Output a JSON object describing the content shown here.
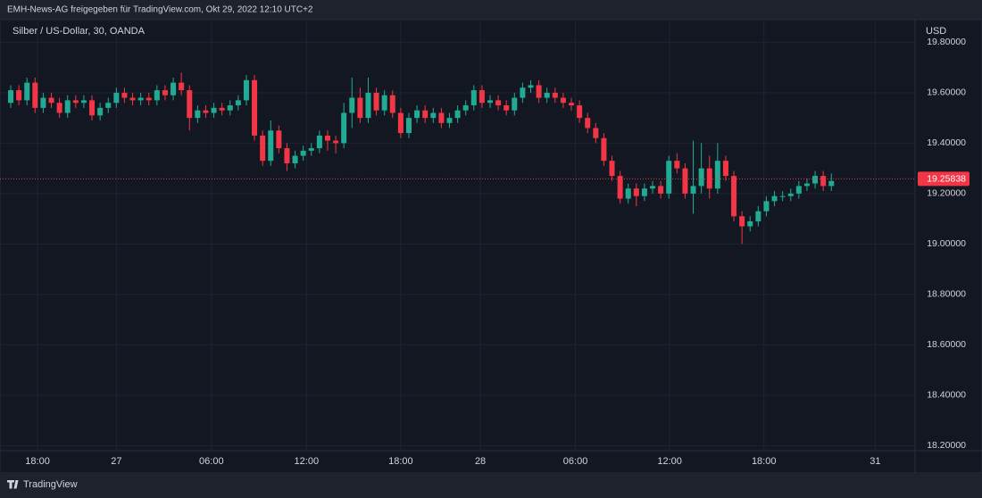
{
  "header": {
    "title": "EMH-News-AG freigegeben für TradingView.com, Okt 29, 2022 12:10 UTC+2"
  },
  "chart_data": {
    "type": "candlestick",
    "title": "Silber / US-Dollar, 30, OANDA",
    "y_axis_label": "USD",
    "up_color": "#22ab94",
    "down_color": "#f23645",
    "open": [
      19.56,
      19.61,
      19.57,
      19.64,
      19.54,
      19.58,
      19.56,
      19.52,
      19.57,
      19.56,
      19.57,
      19.51,
      19.54,
      19.56,
      19.6,
      19.58,
      19.57,
      19.58,
      19.57,
      19.61,
      19.59,
      19.64,
      19.61,
      19.5,
      19.53,
      19.52,
      19.54,
      19.53,
      19.55,
      19.57,
      19.65,
      19.43,
      19.33,
      19.45,
      19.38,
      19.32,
      19.35,
      19.37,
      19.38,
      19.43,
      19.41,
      19.4,
      19.52,
      19.58,
      19.5,
      19.6,
      19.53,
      19.59,
      19.52,
      19.44,
      19.5,
      19.53,
      19.5,
      19.52,
      19.48,
      19.5,
      19.53,
      19.55,
      19.61,
      19.56,
      19.57,
      19.55,
      19.53,
      19.58,
      19.62,
      19.63,
      19.58,
      19.6,
      19.58,
      19.56,
      19.55,
      19.5,
      19.46,
      19.42,
      19.33,
      19.27,
      19.18,
      19.22,
      19.19,
      19.22,
      19.23,
      19.2,
      19.33,
      19.3,
      19.2,
      19.23,
      19.3,
      19.22,
      19.33,
      19.27,
      19.11,
      19.07,
      19.09,
      19.13,
      19.17,
      19.19,
      19.19,
      19.2,
      19.23,
      19.24,
      19.27,
      19.23
    ],
    "high": [
      19.63,
      19.63,
      19.66,
      19.66,
      19.6,
      19.6,
      19.58,
      19.59,
      19.59,
      19.59,
      19.59,
      19.56,
      19.58,
      19.62,
      19.62,
      19.6,
      19.6,
      19.6,
      19.63,
      19.63,
      19.66,
      19.68,
      19.63,
      19.55,
      19.55,
      19.56,
      19.56,
      19.57,
      19.59,
      19.67,
      19.67,
      19.45,
      19.49,
      19.47,
      19.4,
      19.37,
      19.39,
      19.4,
      19.45,
      19.45,
      19.43,
      19.56,
      19.66,
      19.62,
      19.66,
      19.62,
      19.61,
      19.61,
      19.54,
      19.52,
      19.55,
      19.55,
      19.54,
      19.54,
      19.52,
      19.55,
      19.57,
      19.63,
      19.63,
      19.59,
      19.59,
      19.57,
      19.6,
      19.64,
      19.65,
      19.65,
      19.62,
      19.62,
      19.6,
      19.58,
      19.57,
      19.52,
      19.48,
      19.44,
      19.35,
      19.29,
      19.24,
      19.24,
      19.24,
      19.25,
      19.25,
      19.35,
      19.36,
      19.32,
      19.41,
      19.4,
      19.35,
      19.4,
      19.35,
      19.29,
      19.13,
      19.11,
      19.15,
      19.19,
      19.21,
      19.21,
      19.22,
      19.25,
      19.26,
      19.29,
      19.29,
      19.28
    ],
    "low": [
      19.54,
      19.55,
      19.55,
      19.52,
      19.52,
      19.54,
      19.5,
      19.5,
      19.54,
      19.54,
      19.49,
      19.49,
      19.52,
      19.54,
      19.56,
      19.55,
      19.55,
      19.55,
      19.55,
      19.57,
      19.57,
      19.59,
      19.45,
      19.48,
      19.5,
      19.5,
      19.51,
      19.51,
      19.53,
      19.55,
      19.41,
      19.31,
      19.31,
      19.36,
      19.29,
      19.3,
      19.33,
      19.35,
      19.36,
      19.37,
      19.36,
      19.38,
      19.46,
      19.48,
      19.48,
      19.51,
      19.51,
      19.5,
      19.42,
      19.42,
      19.48,
      19.48,
      19.48,
      19.46,
      19.46,
      19.48,
      19.51,
      19.53,
      19.54,
      19.54,
      19.53,
      19.51,
      19.51,
      19.56,
      19.6,
      19.56,
      19.56,
      19.56,
      19.54,
      19.53,
      19.48,
      19.44,
      19.4,
      19.31,
      19.25,
      19.16,
      19.16,
      19.15,
      19.17,
      19.2,
      19.18,
      19.18,
      19.28,
      19.18,
      19.12,
      19.2,
      19.18,
      19.2,
      19.25,
      19.09,
      19.0,
      19.05,
      19.07,
      19.11,
      19.15,
      19.17,
      19.17,
      19.18,
      19.21,
      19.22,
      19.21,
      19.21
    ],
    "close": [
      19.61,
      19.57,
      19.64,
      19.54,
      19.58,
      19.56,
      19.52,
      19.57,
      19.56,
      19.57,
      19.51,
      19.54,
      19.56,
      19.6,
      19.58,
      19.57,
      19.58,
      19.57,
      19.61,
      19.59,
      19.64,
      19.61,
      19.5,
      19.53,
      19.52,
      19.54,
      19.53,
      19.55,
      19.57,
      19.65,
      19.43,
      19.33,
      19.45,
      19.38,
      19.32,
      19.35,
      19.37,
      19.38,
      19.43,
      19.41,
      19.4,
      19.52,
      19.58,
      19.5,
      19.6,
      19.53,
      19.59,
      19.52,
      19.44,
      19.5,
      19.53,
      19.5,
      19.52,
      19.48,
      19.5,
      19.53,
      19.55,
      19.61,
      19.56,
      19.57,
      19.55,
      19.53,
      19.58,
      19.62,
      19.63,
      19.58,
      19.6,
      19.58,
      19.56,
      19.55,
      19.5,
      19.46,
      19.42,
      19.33,
      19.27,
      19.18,
      19.22,
      19.19,
      19.22,
      19.23,
      19.2,
      19.33,
      19.3,
      19.2,
      19.23,
      19.3,
      19.22,
      19.33,
      19.27,
      19.11,
      19.07,
      19.09,
      19.13,
      19.17,
      19.19,
      19.19,
      19.2,
      19.23,
      19.24,
      19.27,
      19.23,
      19.25
    ],
    "last_price": 19.25838,
    "last_price_color": "#f23645",
    "ylim": [
      18.18,
      19.89
    ],
    "yticks": [
      {
        "value": 18.2,
        "label": "18.20000"
      },
      {
        "value": 18.4,
        "label": "18.40000"
      },
      {
        "value": 18.6,
        "label": "18.60000"
      },
      {
        "value": 18.8,
        "label": "18.80000"
      },
      {
        "value": 19.0,
        "label": "19.00000"
      },
      {
        "value": 19.2,
        "label": "19.20000"
      },
      {
        "value": 19.4,
        "label": "19.40000"
      },
      {
        "value": 19.6,
        "label": "19.60000"
      },
      {
        "value": 19.8,
        "label": "19.80000"
      }
    ],
    "xlim": [
      -1.32,
      111.3
    ],
    "xticks": [
      {
        "value": 3.3,
        "label": "18:00"
      },
      {
        "value": 13.0,
        "label": "27"
      },
      {
        "value": 24.7,
        "label": "06:00"
      },
      {
        "value": 36.4,
        "label": "12:00"
      },
      {
        "value": 48.0,
        "label": "18:00"
      },
      {
        "value": 57.8,
        "label": "28"
      },
      {
        "value": 69.5,
        "label": "06:00"
      },
      {
        "value": 81.1,
        "label": "12:00"
      },
      {
        "value": 92.7,
        "label": "18:00"
      },
      {
        "value": 106.4,
        "label": "31"
      }
    ],
    "grid": true
  },
  "footer": {
    "brand": "TradingView"
  }
}
